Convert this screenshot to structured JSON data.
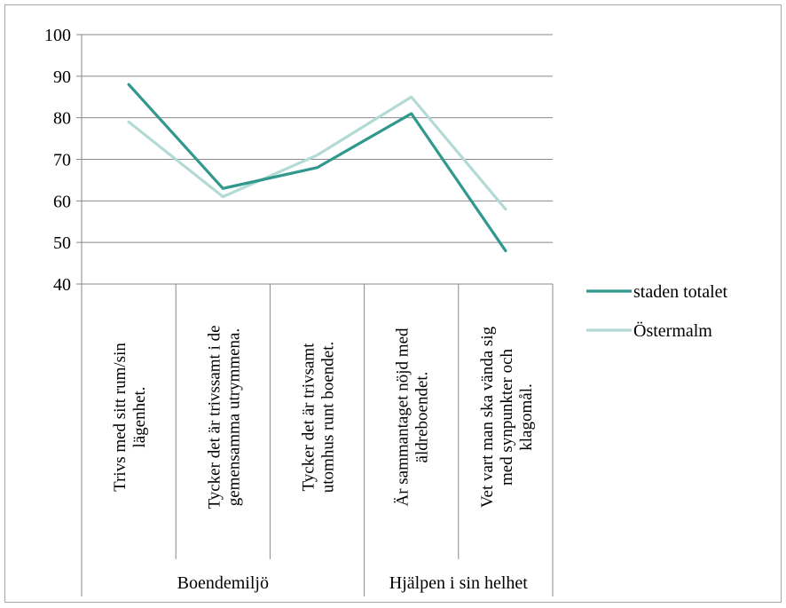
{
  "chart_data": {
    "type": "line",
    "title": "",
    "xlabel": "",
    "ylabel": "",
    "ylim": [
      40,
      100
    ],
    "yticks": [
      40,
      50,
      60,
      70,
      80,
      90,
      100
    ],
    "grid": true,
    "legend_position": "right",
    "categories": [
      [
        "Trivs  med sitt rum/sin",
        "lägenhet."
      ],
      [
        "Tycker det är trivssamt i de",
        "gemensamma utrymmena."
      ],
      [
        "Tycker  det är trivsamt",
        "utomhus runt boendet."
      ],
      [
        "Är sammantaget nöjd med",
        "äldreboendet."
      ],
      [
        "Vet vart man ska vända sig",
        "med synpunkter och",
        "klagomål."
      ]
    ],
    "groups": [
      {
        "label": "Boendemiljö",
        "span": 3
      },
      {
        "label": "Hjälpen i sin helhet",
        "span": 2
      }
    ],
    "series": [
      {
        "name": "staden totalet",
        "color": "#31988c",
        "values": [
          88,
          63,
          68,
          81,
          48
        ]
      },
      {
        "name": "Östermalm",
        "color": "#b3dad5",
        "values": [
          79,
          61,
          71,
          85,
          58
        ]
      }
    ]
  }
}
